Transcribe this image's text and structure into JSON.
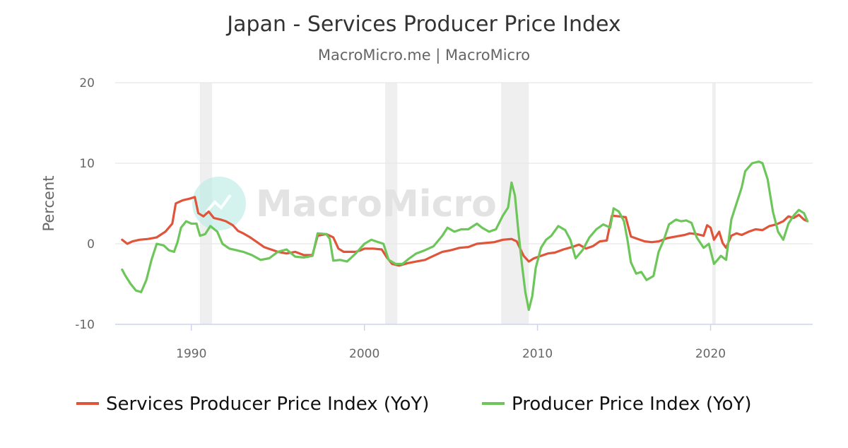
{
  "chart_data": {
    "type": "line",
    "title": "Japan - Services Producer Price Index",
    "subtitle": "MacroMicro.me | MacroMicro",
    "ylabel": "Percent",
    "xlabel": "",
    "xlim": [
      1985.6,
      2025.9
    ],
    "ylim": [
      -10,
      20
    ],
    "y_ticks": [
      20,
      10,
      0,
      -10
    ],
    "x_ticks": [
      1990,
      2000,
      2010,
      2020
    ],
    "watermark": "MacroMicro",
    "recession_bands": [
      [
        1990.5,
        1991.2
      ],
      [
        2001.2,
        2001.9
      ],
      [
        2007.9,
        2009.5
      ],
      [
        2020.1,
        2020.3
      ]
    ],
    "series": [
      {
        "name": "Services Producer Price Index (YoY)",
        "color": "#e0543a",
        "points": [
          [
            1986.0,
            0.5
          ],
          [
            1986.3,
            0.0
          ],
          [
            1986.6,
            0.3
          ],
          [
            1987.0,
            0.5
          ],
          [
            1987.5,
            0.6
          ],
          [
            1988.0,
            0.8
          ],
          [
            1988.5,
            1.5
          ],
          [
            1988.9,
            2.5
          ],
          [
            1989.1,
            5.0
          ],
          [
            1989.5,
            5.4
          ],
          [
            1989.9,
            5.6
          ],
          [
            1990.2,
            5.8
          ],
          [
            1990.4,
            3.8
          ],
          [
            1990.7,
            3.4
          ],
          [
            1991.0,
            4.0
          ],
          [
            1991.3,
            3.2
          ],
          [
            1991.7,
            3.0
          ],
          [
            1992.0,
            2.8
          ],
          [
            1992.4,
            2.3
          ],
          [
            1992.7,
            1.6
          ],
          [
            1993.0,
            1.3
          ],
          [
            1993.4,
            0.8
          ],
          [
            1993.8,
            0.2
          ],
          [
            1994.2,
            -0.4
          ],
          [
            1994.6,
            -0.7
          ],
          [
            1995.0,
            -1.0
          ],
          [
            1995.5,
            -1.2
          ],
          [
            1996.0,
            -1.0
          ],
          [
            1996.5,
            -1.4
          ],
          [
            1997.0,
            -1.4
          ],
          [
            1997.3,
            1.0
          ],
          [
            1997.8,
            1.2
          ],
          [
            1998.2,
            0.8
          ],
          [
            1998.5,
            -0.6
          ],
          [
            1998.8,
            -1.0
          ],
          [
            1999.5,
            -1.0
          ],
          [
            1999.8,
            -0.8
          ],
          [
            2000.0,
            -0.6
          ],
          [
            2000.5,
            -0.6
          ],
          [
            2001.0,
            -0.7
          ],
          [
            2001.3,
            -1.7
          ],
          [
            2001.6,
            -2.5
          ],
          [
            2002.0,
            -2.7
          ],
          [
            2002.5,
            -2.4
          ],
          [
            2003.0,
            -2.2
          ],
          [
            2003.5,
            -2.0
          ],
          [
            2004.0,
            -1.5
          ],
          [
            2004.5,
            -1.0
          ],
          [
            2005.0,
            -0.8
          ],
          [
            2005.5,
            -0.5
          ],
          [
            2006.0,
            -0.4
          ],
          [
            2006.5,
            0.0
          ],
          [
            2007.0,
            0.1
          ],
          [
            2007.5,
            0.2
          ],
          [
            2008.0,
            0.5
          ],
          [
            2008.5,
            0.6
          ],
          [
            2008.8,
            0.3
          ],
          [
            2009.2,
            -1.5
          ],
          [
            2009.5,
            -2.2
          ],
          [
            2009.8,
            -1.8
          ],
          [
            2010.2,
            -1.5
          ],
          [
            2010.6,
            -1.2
          ],
          [
            2011.0,
            -1.1
          ],
          [
            2011.5,
            -0.7
          ],
          [
            2012.0,
            -0.4
          ],
          [
            2012.4,
            -0.1
          ],
          [
            2012.8,
            -0.6
          ],
          [
            2013.2,
            -0.3
          ],
          [
            2013.6,
            0.3
          ],
          [
            2014.0,
            0.4
          ],
          [
            2014.3,
            3.5
          ],
          [
            2014.7,
            3.4
          ],
          [
            2015.1,
            3.3
          ],
          [
            2015.4,
            0.9
          ],
          [
            2015.8,
            0.6
          ],
          [
            2016.2,
            0.3
          ],
          [
            2016.6,
            0.2
          ],
          [
            2017.0,
            0.3
          ],
          [
            2017.5,
            0.7
          ],
          [
            2018.0,
            0.9
          ],
          [
            2018.5,
            1.1
          ],
          [
            2018.8,
            1.3
          ],
          [
            2019.2,
            1.2
          ],
          [
            2019.6,
            1.0
          ],
          [
            2019.8,
            2.3
          ],
          [
            2020.0,
            2.0
          ],
          [
            2020.2,
            0.5
          ],
          [
            2020.5,
            1.5
          ],
          [
            2020.7,
            0.1
          ],
          [
            2020.9,
            -0.5
          ],
          [
            2021.2,
            1.0
          ],
          [
            2021.5,
            1.3
          ],
          [
            2021.8,
            1.1
          ],
          [
            2022.2,
            1.5
          ],
          [
            2022.6,
            1.8
          ],
          [
            2023.0,
            1.7
          ],
          [
            2023.4,
            2.2
          ],
          [
            2023.8,
            2.4
          ],
          [
            2024.2,
            2.8
          ],
          [
            2024.5,
            3.4
          ],
          [
            2024.8,
            3.2
          ],
          [
            2025.1,
            3.6
          ],
          [
            2025.4,
            3.0
          ],
          [
            2025.6,
            2.8
          ]
        ]
      },
      {
        "name": "Producer Price Index (YoY)",
        "color": "#6cc65a",
        "points": [
          [
            1986.0,
            -3.2
          ],
          [
            1986.2,
            -4.0
          ],
          [
            1986.5,
            -5.0
          ],
          [
            1986.8,
            -5.8
          ],
          [
            1987.1,
            -6.0
          ],
          [
            1987.4,
            -4.5
          ],
          [
            1987.7,
            -2.0
          ],
          [
            1988.0,
            0.0
          ],
          [
            1988.4,
            -0.2
          ],
          [
            1988.7,
            -0.8
          ],
          [
            1989.0,
            -1.0
          ],
          [
            1989.2,
            0.2
          ],
          [
            1989.4,
            2.0
          ],
          [
            1989.7,
            2.8
          ],
          [
            1990.0,
            2.5
          ],
          [
            1990.3,
            2.5
          ],
          [
            1990.5,
            1.0
          ],
          [
            1990.8,
            1.2
          ],
          [
            1991.1,
            2.2
          ],
          [
            1991.5,
            1.5
          ],
          [
            1991.8,
            0.0
          ],
          [
            1992.2,
            -0.6
          ],
          [
            1992.6,
            -0.8
          ],
          [
            1993.0,
            -1.0
          ],
          [
            1993.5,
            -1.4
          ],
          [
            1994.0,
            -2.0
          ],
          [
            1994.5,
            -1.8
          ],
          [
            1995.0,
            -1.0
          ],
          [
            1995.5,
            -0.7
          ],
          [
            1996.0,
            -1.6
          ],
          [
            1996.5,
            -1.7
          ],
          [
            1997.0,
            -1.5
          ],
          [
            1997.3,
            1.3
          ],
          [
            1997.8,
            1.2
          ],
          [
            1998.0,
            0.6
          ],
          [
            1998.2,
            -2.1
          ],
          [
            1998.6,
            -2.0
          ],
          [
            1999.0,
            -2.2
          ],
          [
            1999.5,
            -1.2
          ],
          [
            2000.0,
            0.0
          ],
          [
            2000.4,
            0.5
          ],
          [
            2000.8,
            0.2
          ],
          [
            2001.1,
            0.0
          ],
          [
            2001.4,
            -2.0
          ],
          [
            2001.8,
            -2.5
          ],
          [
            2002.2,
            -2.5
          ],
          [
            2002.6,
            -1.8
          ],
          [
            2003.0,
            -1.2
          ],
          [
            2003.5,
            -0.8
          ],
          [
            2004.0,
            -0.3
          ],
          [
            2004.5,
            1.0
          ],
          [
            2004.8,
            2.0
          ],
          [
            2005.2,
            1.5
          ],
          [
            2005.6,
            1.8
          ],
          [
            2006.0,
            1.8
          ],
          [
            2006.5,
            2.5
          ],
          [
            2006.8,
            2.0
          ],
          [
            2007.2,
            1.5
          ],
          [
            2007.6,
            1.8
          ],
          [
            2008.0,
            3.5
          ],
          [
            2008.3,
            4.5
          ],
          [
            2008.5,
            7.6
          ],
          [
            2008.7,
            6.0
          ],
          [
            2008.9,
            1.5
          ],
          [
            2009.1,
            -2.5
          ],
          [
            2009.3,
            -6.0
          ],
          [
            2009.5,
            -8.2
          ],
          [
            2009.7,
            -6.5
          ],
          [
            2009.9,
            -3.0
          ],
          [
            2010.2,
            -0.5
          ],
          [
            2010.5,
            0.5
          ],
          [
            2010.8,
            1.0
          ],
          [
            2011.2,
            2.2
          ],
          [
            2011.6,
            1.7
          ],
          [
            2011.9,
            0.5
          ],
          [
            2012.2,
            -1.8
          ],
          [
            2012.6,
            -0.8
          ],
          [
            2013.0,
            0.8
          ],
          [
            2013.4,
            1.8
          ],
          [
            2013.8,
            2.4
          ],
          [
            2014.2,
            2.0
          ],
          [
            2014.4,
            4.4
          ],
          [
            2014.7,
            4.0
          ],
          [
            2015.0,
            2.8
          ],
          [
            2015.2,
            0.5
          ],
          [
            2015.4,
            -2.3
          ],
          [
            2015.7,
            -3.7
          ],
          [
            2016.0,
            -3.5
          ],
          [
            2016.3,
            -4.5
          ],
          [
            2016.7,
            -4.0
          ],
          [
            2017.0,
            -1.0
          ],
          [
            2017.3,
            0.5
          ],
          [
            2017.6,
            2.4
          ],
          [
            2018.0,
            3.0
          ],
          [
            2018.3,
            2.8
          ],
          [
            2018.6,
            2.9
          ],
          [
            2018.9,
            2.6
          ],
          [
            2019.2,
            0.8
          ],
          [
            2019.6,
            -0.5
          ],
          [
            2019.9,
            0.0
          ],
          [
            2020.2,
            -2.5
          ],
          [
            2020.6,
            -1.5
          ],
          [
            2020.9,
            -2.0
          ],
          [
            2021.2,
            3.0
          ],
          [
            2021.5,
            5.0
          ],
          [
            2021.8,
            7.0
          ],
          [
            2022.0,
            9.0
          ],
          [
            2022.4,
            10.0
          ],
          [
            2022.8,
            10.2
          ],
          [
            2023.0,
            10.0
          ],
          [
            2023.3,
            8.0
          ],
          [
            2023.6,
            4.0
          ],
          [
            2023.9,
            1.5
          ],
          [
            2024.2,
            0.5
          ],
          [
            2024.5,
            2.5
          ],
          [
            2024.8,
            3.5
          ],
          [
            2025.1,
            4.2
          ],
          [
            2025.4,
            3.8
          ],
          [
            2025.6,
            2.8
          ]
        ]
      }
    ]
  }
}
